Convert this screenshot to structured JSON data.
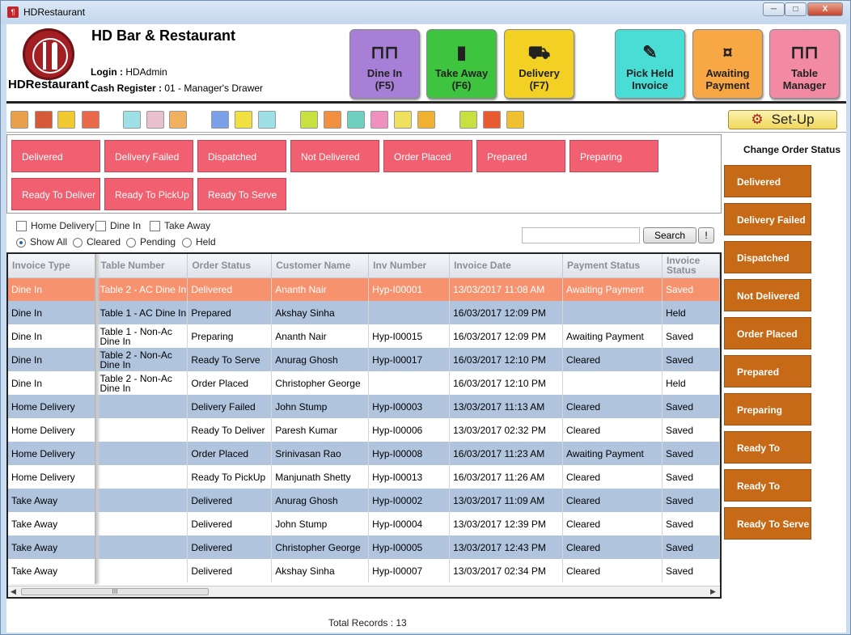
{
  "window": {
    "title": "HDRestaurant",
    "minimize": "─",
    "maximize": "□",
    "close": "X"
  },
  "header": {
    "logo_text": "HDRestaurant",
    "bar_name": "HD Bar & Restaurant",
    "login_label": "Login :",
    "login_value": "HDAdmin",
    "cash_label": "Cash Register :",
    "cash_value": "01 - Manager's Drawer",
    "buttons": [
      {
        "label": "Dine In",
        "key": "(F5)",
        "icon": "dine-icon",
        "color": "#a77fd6"
      },
      {
        "label": "Take Away",
        "key": "(F6)",
        "icon": "cup-icon",
        "color": "#3ec43e"
      },
      {
        "label": "Delivery",
        "key": "(F7)",
        "icon": "truck-icon",
        "color": "#f2d024"
      },
      {
        "label": "Pick Held",
        "key": "Invoice",
        "icon": "pencil-icon",
        "color": "#49ddd6"
      },
      {
        "label": "Awaiting",
        "key": "Payment",
        "icon": "money-icon",
        "color": "#f7a744"
      },
      {
        "label": "Table",
        "key": "Manager",
        "icon": "table-icon",
        "color": "#f28aa3"
      }
    ]
  },
  "toolbar": {
    "setup_label": "Set-Up"
  },
  "filters": {
    "status_buttons": [
      "Delivered",
      "Delivery Failed",
      "Dispatched",
      "Not Delivered",
      "Order Placed",
      "Prepared",
      "Preparing",
      "Ready To Deliver",
      "Ready To PickUp",
      "Ready To Serve"
    ],
    "types": [
      "Home Delivery",
      "Dine In",
      "Take Away"
    ],
    "views": [
      "Show All",
      "Cleared",
      "Pending",
      "Held"
    ],
    "search_value": "",
    "search_label": "Search",
    "extra_label": "!"
  },
  "grid": {
    "columns": [
      "Invoice Type",
      "Table Number",
      "Order Status",
      "Customer Name",
      "Inv Number",
      "Invoice Date",
      "Payment Status",
      "Invoice Status"
    ],
    "rows": [
      [
        "Dine In",
        "Table 2 - AC Dine In",
        "Delivered",
        "Ananth Nair",
        "Hyp-I00001",
        "13/03/2017 11:08 AM",
        "Awaiting Payment",
        "Saved"
      ],
      [
        "Dine In",
        "Table 1 - AC Dine In",
        "Prepared",
        "Akshay Sinha",
        "",
        "16/03/2017 12:09 PM",
        "",
        "Held"
      ],
      [
        "Dine In",
        "Table 1 - Non-Ac Dine In",
        "Preparing",
        "Ananth Nair",
        "Hyp-I00015",
        "16/03/2017 12:09 PM",
        "Awaiting Payment",
        "Saved"
      ],
      [
        "Dine In",
        "Table 2 - Non-Ac Dine In",
        "Ready To Serve",
        "Anurag Ghosh",
        "Hyp-I00017",
        "16/03/2017 12:10 PM",
        "Cleared",
        "Saved"
      ],
      [
        "Dine In",
        "Table 2 - Non-Ac Dine In",
        "Order Placed",
        "Christopher George",
        "",
        "16/03/2017 12:10 PM",
        "",
        "Held"
      ],
      [
        "Home Delivery",
        "",
        "Delivery Failed",
        "John Stump",
        "Hyp-I00003",
        "13/03/2017 11:13 AM",
        "Cleared",
        "Saved"
      ],
      [
        "Home Delivery",
        "",
        "Ready To Deliver",
        "Paresh Kumar",
        "Hyp-I00006",
        "13/03/2017 02:32 PM",
        "Cleared",
        "Saved"
      ],
      [
        "Home Delivery",
        "",
        "Order Placed",
        "Srinivasan Rao",
        "Hyp-I00008",
        "16/03/2017 11:23 AM",
        "Awaiting Payment",
        "Saved"
      ],
      [
        "Home Delivery",
        "",
        "Ready To PickUp",
        "Manjunath Shetty",
        "Hyp-I00013",
        "16/03/2017 11:26 AM",
        "Cleared",
        "Saved"
      ],
      [
        "Take Away",
        "",
        "Delivered",
        "Anurag Ghosh",
        "Hyp-I00002",
        "13/03/2017 11:09 AM",
        "Cleared",
        "Saved"
      ],
      [
        "Take Away",
        "",
        "Delivered",
        "John Stump",
        "Hyp-I00004",
        "13/03/2017 12:39 PM",
        "Cleared",
        "Saved"
      ],
      [
        "Take Away",
        "",
        "Delivered",
        "Christopher George",
        "Hyp-I00005",
        "13/03/2017 12:43 PM",
        "Cleared",
        "Saved"
      ],
      [
        "Take Away",
        "",
        "Delivered",
        "Akshay Sinha",
        "Hyp-I00007",
        "13/03/2017 02:34 PM",
        "Cleared",
        "Saved"
      ]
    ],
    "scroll_thumb": "III",
    "total_records": "Total Records : 13"
  },
  "side": {
    "title": "Change Order Status",
    "buttons": [
      "Delivered",
      "Delivery Failed",
      "Dispatched",
      "Not Delivered",
      "Order Placed",
      "Prepared",
      "Preparing",
      "Ready To Deliver",
      "Ready To PickUp",
      "Ready To Serve"
    ]
  }
}
